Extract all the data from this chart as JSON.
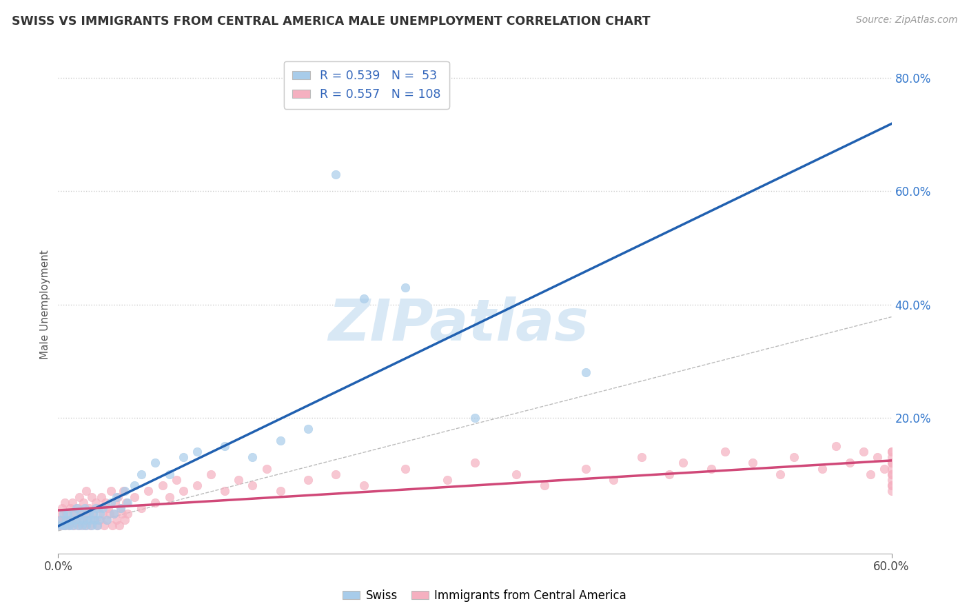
{
  "title": "SWISS VS IMMIGRANTS FROM CENTRAL AMERICA MALE UNEMPLOYMENT CORRELATION CHART",
  "source": "Source: ZipAtlas.com",
  "xlim": [
    0.0,
    0.6
  ],
  "ylim": [
    -0.02,
    0.82
  ],
  "ylim_display": [
    0.0,
    0.82
  ],
  "legend_swiss_R": 0.539,
  "legend_swiss_N": 53,
  "legend_imm_R": 0.557,
  "legend_imm_N": 108,
  "swiss_color": "#A8CCEA",
  "swiss_line_color": "#2060B0",
  "imm_color": "#F5B0C0",
  "imm_line_color": "#D04878",
  "diagonal_color": "#BBBBBB",
  "watermark_color": "#D8E8F5",
  "ylabel": "Male Unemployment",
  "swiss_scatter_x": [
    0.0,
    0.002,
    0.003,
    0.004,
    0.005,
    0.006,
    0.007,
    0.008,
    0.009,
    0.01,
    0.011,
    0.012,
    0.013,
    0.014,
    0.015,
    0.016,
    0.017,
    0.018,
    0.019,
    0.02,
    0.021,
    0.022,
    0.023,
    0.024,
    0.025,
    0.026,
    0.027,
    0.028,
    0.029,
    0.03,
    0.032,
    0.035,
    0.038,
    0.04,
    0.042,
    0.045,
    0.048,
    0.05,
    0.055,
    0.06,
    0.07,
    0.08,
    0.09,
    0.1,
    0.12,
    0.14,
    0.16,
    0.18,
    0.2,
    0.22,
    0.25,
    0.3,
    0.38
  ],
  "swiss_scatter_y": [
    0.01,
    0.02,
    0.01,
    0.03,
    0.01,
    0.02,
    0.03,
    0.01,
    0.02,
    0.01,
    0.03,
    0.02,
    0.04,
    0.01,
    0.02,
    0.03,
    0.01,
    0.02,
    0.04,
    0.01,
    0.02,
    0.03,
    0.02,
    0.01,
    0.03,
    0.02,
    0.04,
    0.01,
    0.02,
    0.03,
    0.04,
    0.02,
    0.05,
    0.03,
    0.06,
    0.04,
    0.07,
    0.05,
    0.08,
    0.1,
    0.12,
    0.1,
    0.13,
    0.14,
    0.15,
    0.13,
    0.16,
    0.18,
    0.63,
    0.41,
    0.43,
    0.2,
    0.28
  ],
  "imm_scatter_x": [
    0.0,
    0.001,
    0.002,
    0.003,
    0.004,
    0.005,
    0.005,
    0.006,
    0.007,
    0.008,
    0.009,
    0.01,
    0.01,
    0.011,
    0.012,
    0.013,
    0.014,
    0.015,
    0.015,
    0.016,
    0.017,
    0.018,
    0.019,
    0.02,
    0.02,
    0.021,
    0.022,
    0.023,
    0.024,
    0.025,
    0.026,
    0.027,
    0.028,
    0.029,
    0.03,
    0.031,
    0.032,
    0.033,
    0.034,
    0.035,
    0.036,
    0.037,
    0.038,
    0.039,
    0.04,
    0.041,
    0.042,
    0.043,
    0.044,
    0.045,
    0.046,
    0.047,
    0.048,
    0.049,
    0.05,
    0.055,
    0.06,
    0.065,
    0.07,
    0.075,
    0.08,
    0.085,
    0.09,
    0.1,
    0.11,
    0.12,
    0.13,
    0.14,
    0.15,
    0.16,
    0.18,
    0.2,
    0.22,
    0.25,
    0.28,
    0.3,
    0.33,
    0.35,
    0.38,
    0.4,
    0.42,
    0.44,
    0.45,
    0.47,
    0.48,
    0.5,
    0.52,
    0.53,
    0.55,
    0.56,
    0.57,
    0.58,
    0.585,
    0.59,
    0.595,
    0.6,
    0.6,
    0.6,
    0.6,
    0.6,
    0.6,
    0.6,
    0.6,
    0.6,
    0.6,
    0.6,
    0.6,
    0.6
  ],
  "imm_scatter_y": [
    0.02,
    0.03,
    0.01,
    0.04,
    0.02,
    0.01,
    0.05,
    0.03,
    0.02,
    0.01,
    0.04,
    0.02,
    0.05,
    0.01,
    0.03,
    0.02,
    0.04,
    0.01,
    0.06,
    0.03,
    0.02,
    0.05,
    0.01,
    0.03,
    0.07,
    0.02,
    0.04,
    0.01,
    0.06,
    0.03,
    0.02,
    0.05,
    0.01,
    0.04,
    0.02,
    0.06,
    0.03,
    0.01,
    0.05,
    0.02,
    0.04,
    0.03,
    0.07,
    0.01,
    0.03,
    0.05,
    0.02,
    0.06,
    0.01,
    0.04,
    0.03,
    0.07,
    0.02,
    0.05,
    0.03,
    0.06,
    0.04,
    0.07,
    0.05,
    0.08,
    0.06,
    0.09,
    0.07,
    0.08,
    0.1,
    0.07,
    0.09,
    0.08,
    0.11,
    0.07,
    0.09,
    0.1,
    0.08,
    0.11,
    0.09,
    0.12,
    0.1,
    0.08,
    0.11,
    0.09,
    0.13,
    0.1,
    0.12,
    0.11,
    0.14,
    0.12,
    0.1,
    0.13,
    0.11,
    0.15,
    0.12,
    0.14,
    0.1,
    0.13,
    0.11,
    0.12,
    0.08,
    0.1,
    0.14,
    0.09,
    0.11,
    0.13,
    0.12,
    0.08,
    0.14,
    0.1,
    0.07,
    0.12
  ]
}
